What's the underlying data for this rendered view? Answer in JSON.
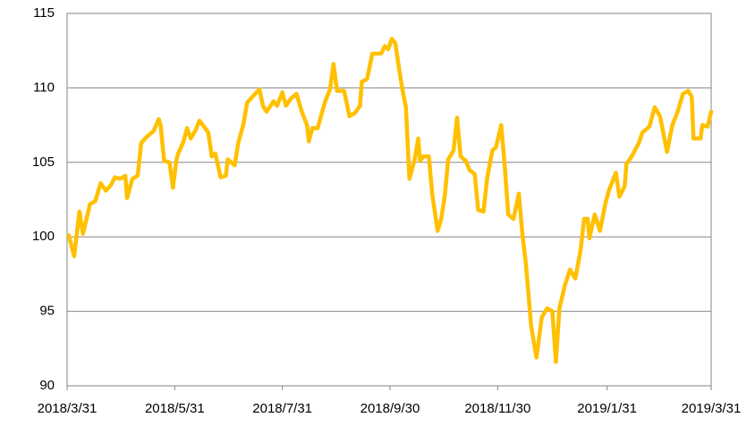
{
  "chart_data": {
    "type": "line",
    "x": [
      "2018/4/1",
      "2018/4/4",
      "2018/4/7",
      "2018/4/9",
      "2018/4/11",
      "2018/4/13",
      "2018/4/16",
      "2018/4/19",
      "2018/4/22",
      "2018/4/25",
      "2018/4/27",
      "2018/4/30",
      "2018/5/3",
      "2018/5/4",
      "2018/5/7",
      "2018/5/10",
      "2018/5/12",
      "2018/5/15",
      "2018/5/17",
      "2018/5/19",
      "2018/5/22",
      "2018/5/23",
      "2018/5/25",
      "2018/5/28",
      "2018/5/30",
      "2018/6/1",
      "2018/6/2",
      "2018/6/5",
      "2018/6/7",
      "2018/6/9",
      "2018/6/12",
      "2018/6/14",
      "2018/6/16",
      "2018/6/19",
      "2018/6/21",
      "2018/6/23",
      "2018/6/26",
      "2018/6/29",
      "2018/6/30",
      "2018/7/4",
      "2018/7/6",
      "2018/7/9",
      "2018/7/11",
      "2018/7/14",
      "2018/7/18",
      "2018/7/20",
      "2018/7/22",
      "2018/7/26",
      "2018/7/28",
      "2018/7/31",
      "2018/8/2",
      "2018/8/5",
      "2018/8/8",
      "2018/8/10",
      "2018/8/11",
      "2018/8/14",
      "2018/8/15",
      "2018/8/17",
      "2018/8/20",
      "2018/8/24",
      "2018/8/27",
      "2018/8/29",
      "2018/8/31",
      "2018/9/4",
      "2018/9/7",
      "2018/9/10",
      "2018/9/13",
      "2018/9/14",
      "2018/9/17",
      "2018/9/20",
      "2018/9/25",
      "2018/9/27",
      "2018/9/29",
      "2018/10/1",
      "2018/10/3",
      "2018/10/5",
      "2018/10/7",
      "2018/10/9",
      "2018/10/11",
      "2018/10/14",
      "2018/10/16",
      "2018/10/17",
      "2018/10/19",
      "2018/10/22",
      "2018/10/24",
      "2018/10/27",
      "2018/10/29",
      "2018/10/31",
      "2018/11/2",
      "2018/11/5",
      "2018/11/7",
      "2018/11/9",
      "2018/11/12",
      "2018/11/14",
      "2018/11/17",
      "2018/11/19",
      "2018/11/22",
      "2018/11/24",
      "2018/11/27",
      "2018/11/29",
      "2018/12/2",
      "2018/12/4",
      "2018/12/6",
      "2018/12/9",
      "2018/12/12",
      "2018/12/14",
      "2018/12/16",
      "2018/12/19",
      "2018/12/22",
      "2018/12/25",
      "2018/12/28",
      "2018/12/31",
      "2019/1/2",
      "2019/1/4",
      "2019/1/7",
      "2019/1/10",
      "2019/1/13",
      "2019/1/16",
      "2019/1/18",
      "2019/1/20",
      "2019/1/21",
      "2019/1/24",
      "2019/1/27",
      "2019/1/30",
      "2019/2/1",
      "2019/2/5",
      "2019/2/7",
      "2019/2/10",
      "2019/2/11",
      "2019/2/14",
      "2019/2/18",
      "2019/2/20",
      "2019/2/24",
      "2019/2/27",
      "2019/3/2",
      "2019/3/6",
      "2019/3/9",
      "2019/3/12",
      "2019/3/15",
      "2019/3/18",
      "2019/3/20",
      "2019/3/21",
      "2019/3/25",
      "2019/3/26",
      "2019/3/29",
      "2019/3/31"
    ],
    "series": [
      {
        "color": "#FFC000",
        "values": [
          100.1,
          98.7,
          101.7,
          100.2,
          101.2,
          102.2,
          102.4,
          103.6,
          103.1,
          103.5,
          104.0,
          103.9,
          104.1,
          102.6,
          103.9,
          104.1,
          106.3,
          106.7,
          106.9,
          107.1,
          107.9,
          107.5,
          105.1,
          105.0,
          103.3,
          105.2,
          105.6,
          106.4,
          107.3,
          106.6,
          107.2,
          107.8,
          107.5,
          107.0,
          105.4,
          105.6,
          104.0,
          104.1,
          105.2,
          104.8,
          106.3,
          107.6,
          109.0,
          109.4,
          109.9,
          108.8,
          108.4,
          109.1,
          108.8,
          109.7,
          108.8,
          109.3,
          109.6,
          108.8,
          108.4,
          107.5,
          106.4,
          107.3,
          107.3,
          109.0,
          109.9,
          111.6,
          109.8,
          109.8,
          108.1,
          108.3,
          108.8,
          110.4,
          110.6,
          112.3,
          112.3,
          112.8,
          112.6,
          113.3,
          113.0,
          111.4,
          109.9,
          108.7,
          103.9,
          105.2,
          106.6,
          105.1,
          105.4,
          105.4,
          102.8,
          100.4,
          101.2,
          102.7,
          105.2,
          105.8,
          108.0,
          105.4,
          105.1,
          104.5,
          104.2,
          101.8,
          101.7,
          103.9,
          105.8,
          106.0,
          107.5,
          104.8,
          101.5,
          101.2,
          102.9,
          100.2,
          98.2,
          94.0,
          91.9,
          94.6,
          95.2,
          95.0,
          91.6,
          95.2,
          96.7,
          97.8,
          97.2,
          99.1,
          101.2,
          101.2,
          99.9,
          101.5,
          100.4,
          102.2,
          103.1,
          104.3,
          102.7,
          103.4,
          104.9,
          105.4,
          106.3,
          107.0,
          107.4,
          108.7,
          108.1,
          105.7,
          107.5,
          108.4,
          109.6,
          109.8,
          109.4,
          106.6,
          106.6,
          107.5,
          107.4,
          108.4
        ]
      }
    ],
    "xlim": [
      "2018/3/31",
      "2019/3/31"
    ],
    "xticks": [
      "2018/3/31",
      "2018/5/31",
      "2018/7/31",
      "2018/9/30",
      "2018/11/30",
      "2019/1/31",
      "2019/3/31"
    ],
    "ylim": [
      90,
      115
    ],
    "yticks": [
      90,
      95,
      100,
      105,
      110,
      115
    ],
    "grid": true
  }
}
